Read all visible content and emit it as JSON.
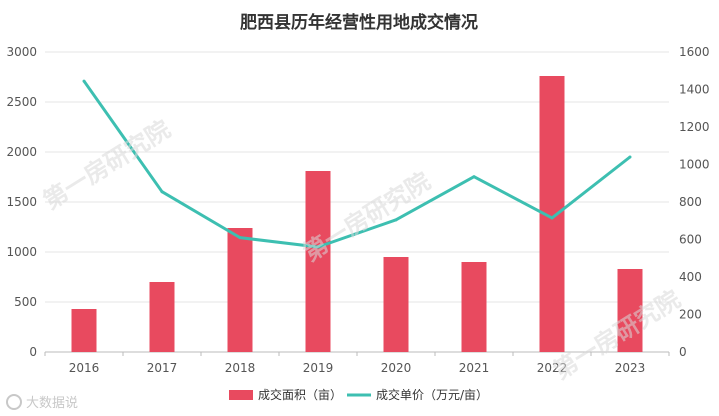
{
  "chart_data": {
    "type": "bar",
    "title": "肥西县历年经营性用地成交情况",
    "categories": [
      "2016",
      "2017",
      "2018",
      "2019",
      "2020",
      "2021",
      "2022",
      "2023"
    ],
    "series": [
      {
        "name": "成交面积（亩）",
        "kind": "bar",
        "axis": "left",
        "color": "#e84a5f",
        "values": [
          430,
          700,
          1240,
          1810,
          950,
          900,
          2760,
          830
        ]
      },
      {
        "name": "成交单价（万元/亩）",
        "kind": "line",
        "axis": "right",
        "color": "#3dbfb1",
        "values": [
          1445,
          855,
          610,
          560,
          705,
          935,
          715,
          1040
        ]
      }
    ],
    "left_axis": {
      "ylim": [
        0,
        3000
      ],
      "ticks": [
        "0",
        "500",
        "1000",
        "1500",
        "2000",
        "2500",
        "3000"
      ]
    },
    "right_axis": {
      "ylim": [
        0,
        1600
      ],
      "ticks": [
        "0",
        "200",
        "400",
        "600",
        "800",
        "1000",
        "1200",
        "1400",
        "1600"
      ]
    },
    "grid": true,
    "legend_position": "bottom"
  },
  "watermarks": [
    "第一房研究院",
    "第一房研究院",
    "第一房研究院"
  ],
  "brand": "大数据说"
}
